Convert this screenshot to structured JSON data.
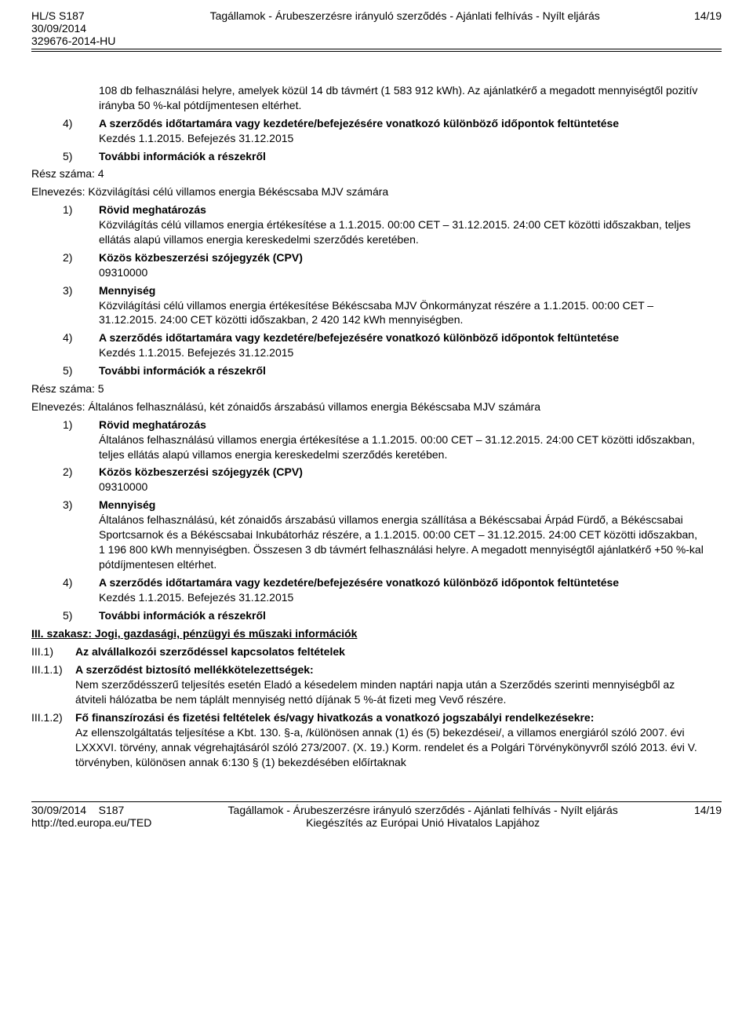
{
  "header": {
    "left_line1": "HL/S S187",
    "left_line2": "30/09/2014",
    "left_line3": "329676-2014-HU",
    "center": "Tagállamok - Árubeszerzésre irányuló szerződés - Ajánlati felhívás - Nyílt eljárás",
    "right": "14/19"
  },
  "body": {
    "p1": "108 db felhasználási helyre, amelyek közül 14 db távmért (1 583 912 kWh). Az ajánlatkérő a megadott mennyiségtől pozitív irányba 50 %-kal pótdíjmentesen eltérhet.",
    "n4": "4)",
    "n4_title": "A szerződés időtartamára vagy kezdetére/befejezésére vonatkozó különböző időpontok feltüntetése",
    "n4_sub": "Kezdés 1.1.2015. Befejezés 31.12.2015",
    "n5": "5)",
    "n5_title": "További információk a részekről",
    "part4_num": "Rész száma: 4",
    "part4_name": "Elnevezés: Közvilágítási célú villamos energia Békéscsaba MJV számára",
    "p4_1": "1)",
    "p4_1_title": "Rövid meghatározás",
    "p4_1_body": "Közvilágítás célú villamos energia értékesítése a 1.1.2015. 00:00 CET – 31.12.2015. 24:00 CET közötti időszakban, teljes ellátás alapú villamos energia kereskedelmi szerződés keretében.",
    "p4_2": "2)",
    "p4_2_title": "Közös közbeszerzési szójegyzék (CPV)",
    "p4_2_body": "09310000",
    "p4_3": "3)",
    "p4_3_title": "Mennyiség",
    "p4_3_body": "Közvilágítási célú villamos energia értékesítése Békéscsaba MJV Önkormányzat részére a 1.1.2015. 00:00 CET – 31.12.2015. 24:00 CET közötti időszakban, 2 420 142 kWh mennyiségben.",
    "p4_4": "4)",
    "p4_4_title": "A szerződés időtartamára vagy kezdetére/befejezésére vonatkozó különböző időpontok feltüntetése",
    "p4_4_body": "Kezdés 1.1.2015. Befejezés 31.12.2015",
    "p4_5": "5)",
    "p4_5_title": "További információk a részekről",
    "part5_num": "Rész száma: 5",
    "part5_name": "Elnevezés: Általános felhasználású, két zónaidős árszabású villamos energia Békéscsaba MJV számára",
    "p5_1": "1)",
    "p5_1_title": "Rövid meghatározás",
    "p5_1_body": "Általános felhasználású villamos energia értékesítése a 1.1.2015. 00:00 CET – 31.12.2015. 24:00 CET közötti időszakban, teljes ellátás alapú villamos energia kereskedelmi szerződés keretében.",
    "p5_2": "2)",
    "p5_2_title": "Közös közbeszerzési szójegyzék (CPV)",
    "p5_2_body": "09310000",
    "p5_3": "3)",
    "p5_3_title": "Mennyiség",
    "p5_3_body": "Általános felhasználású, két zónaidős árszabású villamos energia szállítása a Békéscsabai Árpád Fürdő, a Békéscsabai Sportcsarnok és a Békéscsabai Inkubátorház részére, a 1.1.2015. 00:00 CET – 31.12.2015. 24:00 CET közötti időszakban, 1 196 800 kWh mennyiségben. Összesen 3 db távmért felhasználási helyre. A megadott mennyiségtől ajánlatkérő +50 %-kal pótdíjmentesen eltérhet.",
    "p5_4": "4)",
    "p5_4_title": "A szerződés időtartamára vagy kezdetére/befejezésére vonatkozó különböző időpontok feltüntetése",
    "p5_4_body": "Kezdés 1.1.2015. Befejezés 31.12.2015",
    "p5_5": "5)",
    "p5_5_title": "További információk a részekről",
    "section3": "III. szakasz: Jogi, gazdasági, pénzügyi és műszaki információk",
    "iii1": "III.1)",
    "iii1_title": "Az alvállalkozói szerződéssel kapcsolatos feltételek",
    "iii11": "III.1.1)",
    "iii11_title": "A szerződést biztosító mellékkötelezettségek:",
    "iii11_body": "Nem szerződésszerű teljesítés esetén Eladó a késedelem minden naptári napja után a Szerződés szerinti mennyiségből az átviteli hálózatba be nem táplált mennyiség nettó díjának 5 %-át fizeti meg Vevő részére.",
    "iii12": "III.1.2)",
    "iii12_title": "Fő finanszírozási és fizetési feltételek és/vagy hivatkozás a vonatkozó jogszabályi rendelkezésekre:",
    "iii12_body": "Az ellenszolgáltatás teljesítése a Kbt. 130. §-a, /különösen annak (1) és (5) bekezdései/, a villamos energiáról szóló 2007. évi LXXXVI. törvény, annak végrehajtásáról szóló 273/2007. (X. 19.) Korm. rendelet és a Polgári Törvénykönyvről szóló 2013. évi V. törvényben, különösen annak 6:130 § (1) bekezdésében előírtaknak"
  },
  "footer": {
    "left_line1": "30/09/2014",
    "left_line2": "http://ted.europa.eu/TED",
    "center_line1_prefix": "S187",
    "center_line1": "Tagállamok - Árubeszerzésre irányuló szerződés - Ajánlati felhívás - Nyílt eljárás",
    "center_line2": "Kiegészítés az Európai Unió Hivatalos Lapjához",
    "right": "14/19"
  }
}
